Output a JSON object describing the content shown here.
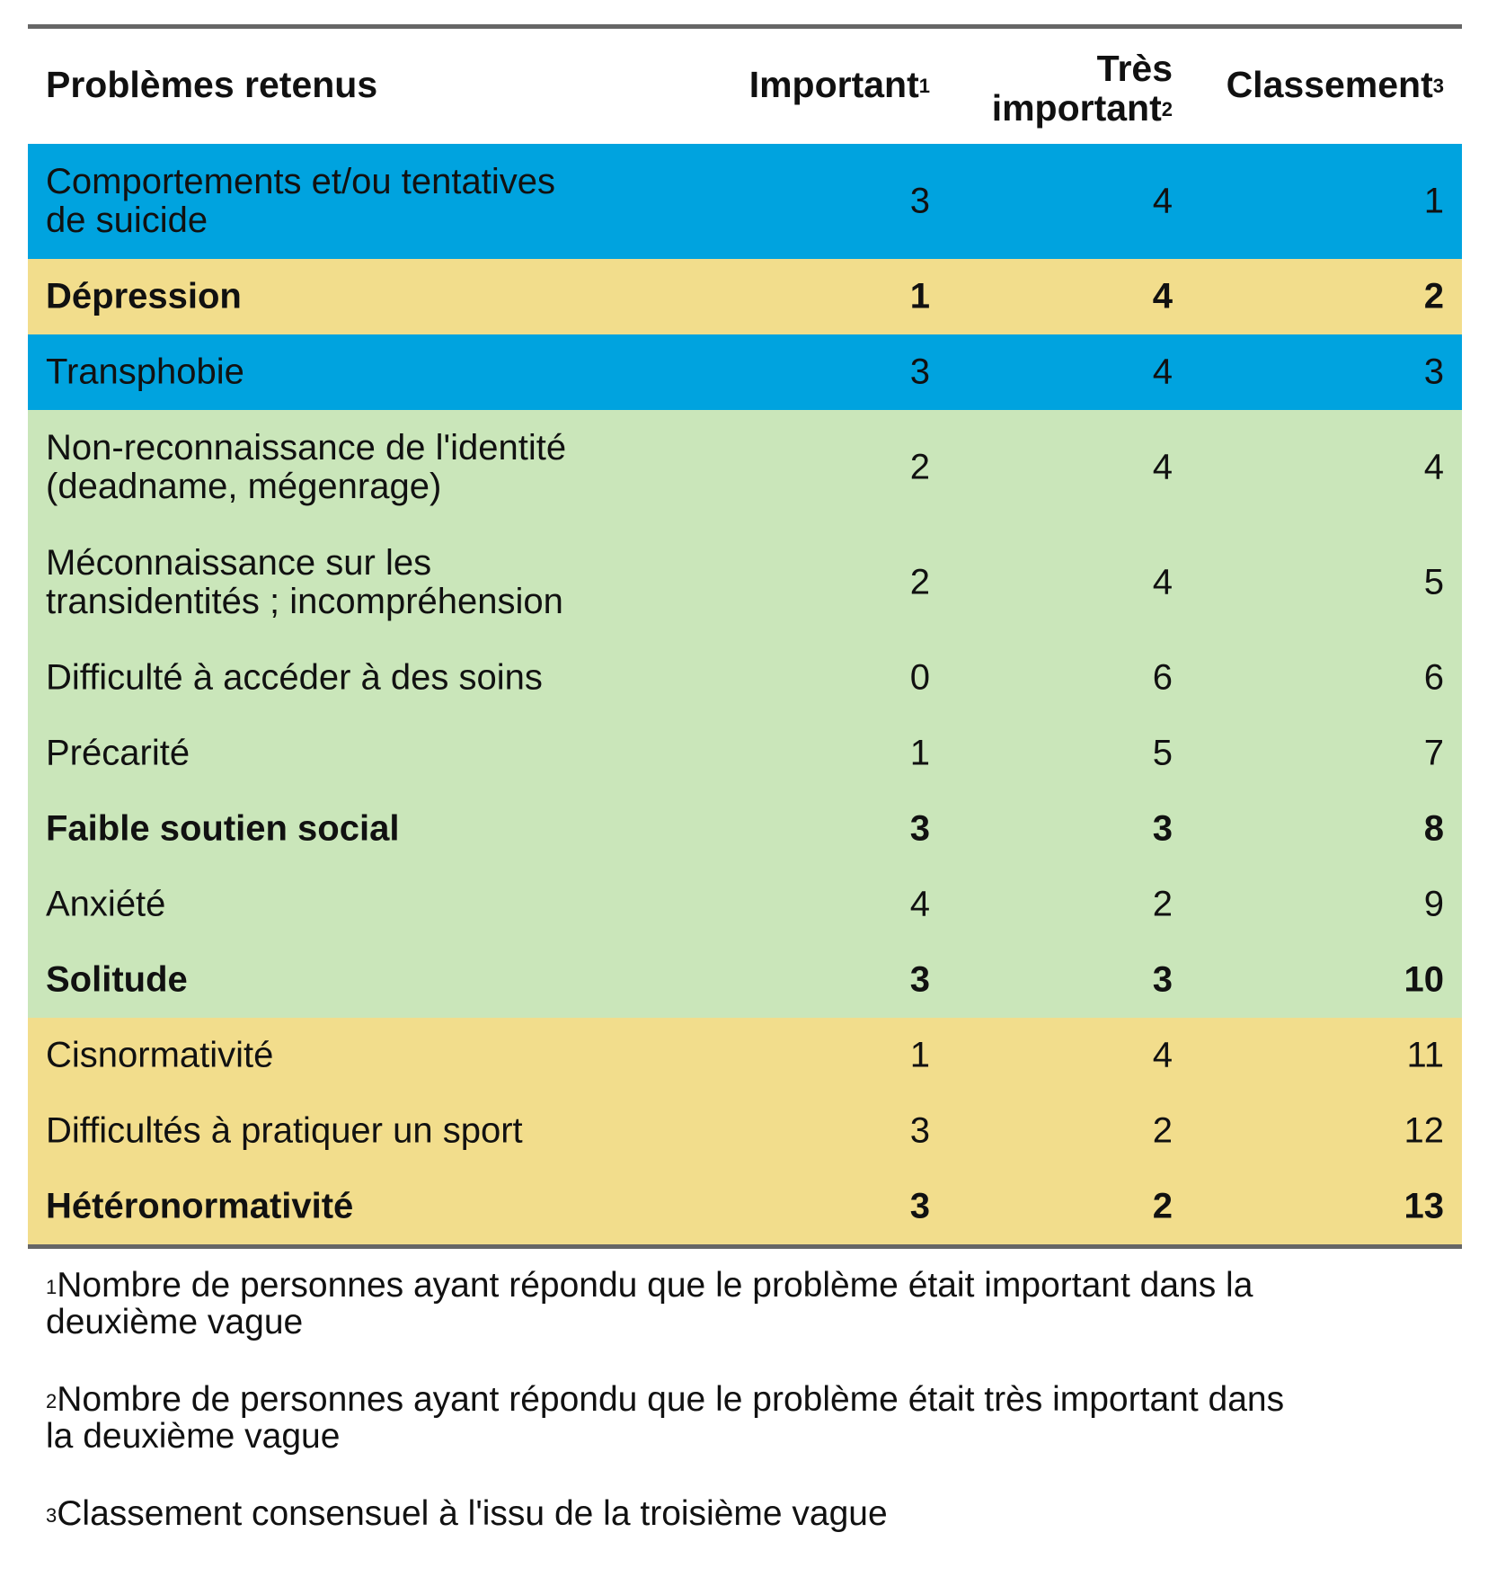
{
  "table": {
    "headers": {
      "label": "Problèmes retenus",
      "important": "Important",
      "important_sup": "1",
      "tres_line1": "Très",
      "tres_line2": "important",
      "tres_sup": "2",
      "classement": "Classement",
      "classement_sup": "3"
    },
    "rows": [
      {
        "label_line1": "Comportements et/ou tentatives",
        "label_line2": "de suicide",
        "important": "3",
        "tres_important": "4",
        "classement": "1",
        "color": "#00A3DF",
        "bold": false
      },
      {
        "label_line1": "Dépression",
        "important": "1",
        "tres_important": "4",
        "classement": "2",
        "color": "#F2DD8C",
        "bold": true
      },
      {
        "label_line1": "Transphobie",
        "important": "3",
        "tres_important": "4",
        "classement": "3",
        "color": "#00A3DF",
        "bold": false
      },
      {
        "label_line1": "Non-reconnaissance de l'identité",
        "label_line2": "(deadname, mégenrage)",
        "important": "2",
        "tres_important": "4",
        "classement": "4",
        "color": "#CAE6BA",
        "bold": false
      },
      {
        "label_line1": "Méconnaissance sur les",
        "label_line2": "transidentités ; incompréhension",
        "important": "2",
        "tres_important": "4",
        "classement": "5",
        "color": "#CAE6BA",
        "bold": false
      },
      {
        "label_line1": "Difficulté à accéder à des soins",
        "important": "0",
        "tres_important": "6",
        "classement": "6",
        "color": "#CAE6BA",
        "bold": false
      },
      {
        "label_line1": "Précarité",
        "important": "1",
        "tres_important": "5",
        "classement": "7",
        "color": "#CAE6BA",
        "bold": false
      },
      {
        "label_line1": "Faible soutien social",
        "important": "3",
        "tres_important": "3",
        "classement": "8",
        "color": "#CAE6BA",
        "bold": true
      },
      {
        "label_line1": "Anxiété",
        "important": "4",
        "tres_important": "2",
        "classement": "9",
        "color": "#CAE6BA",
        "bold": false
      },
      {
        "label_line1": "Solitude",
        "important": "3",
        "tres_important": "3",
        "classement": "10",
        "color": "#CAE6BA",
        "bold": true
      },
      {
        "label_line1": "Cisnormativité",
        "important": "1",
        "tres_important": "4",
        "classement": "11",
        "color": "#F2DD8C",
        "bold": false
      },
      {
        "label_line1": "Difficultés à pratiquer un sport",
        "important": "3",
        "tres_important": "2",
        "classement": "12",
        "color": "#F2DD8C",
        "bold": false
      },
      {
        "label_line1": "Hétéronormativité",
        "important": "3",
        "tres_important": "2",
        "classement": "13",
        "color": "#F2DD8C",
        "bold": true
      }
    ]
  },
  "footnotes": [
    {
      "sup": "1",
      "line1": "Nombre de personnes ayant répondu que le problème était important dans la",
      "line2": "deuxième vague"
    },
    {
      "sup": "2",
      "line1": "Nombre de personnes ayant répondu que le problème était très important dans",
      "line2": "la deuxième vague"
    },
    {
      "sup": "3",
      "line1": "Classement consensuel à l'issu de la troisième vague"
    }
  ]
}
